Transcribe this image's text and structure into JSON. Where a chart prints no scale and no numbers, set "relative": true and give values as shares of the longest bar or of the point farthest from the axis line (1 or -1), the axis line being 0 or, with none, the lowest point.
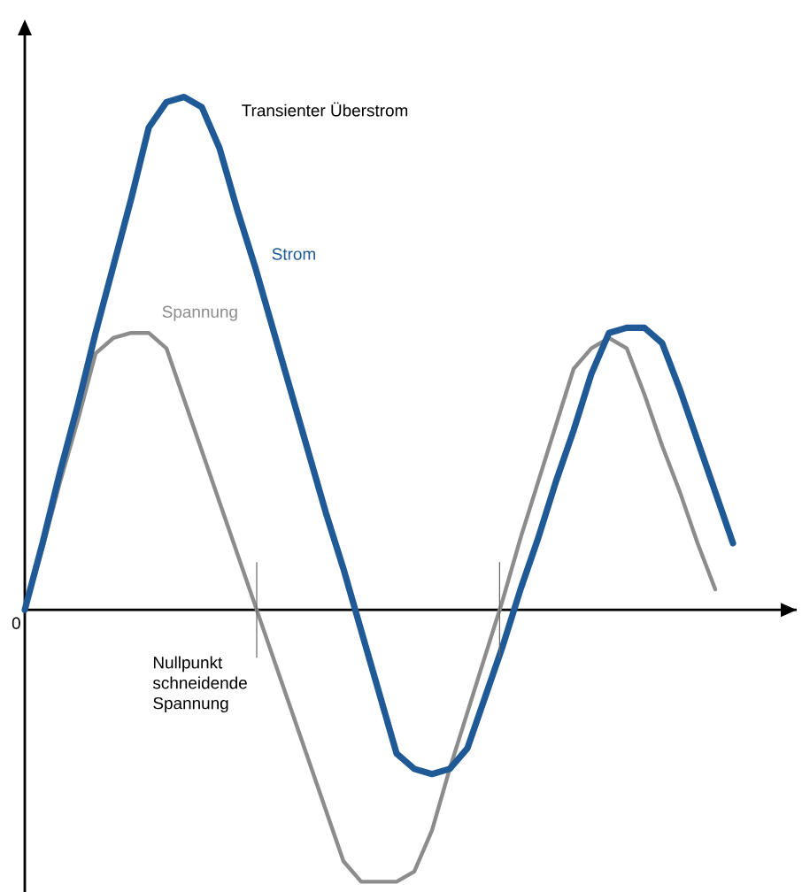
{
  "chart_data": {
    "type": "line",
    "relative": true,
    "marker": "none",
    "line_style": "solid",
    "categories": [
      null,
      null,
      null,
      null,
      null,
      null,
      null,
      null,
      null,
      null,
      null,
      null,
      null,
      null,
      null,
      null,
      null,
      null,
      null,
      null,
      null,
      null,
      null,
      null,
      null,
      null,
      null,
      null,
      null,
      null,
      null,
      null,
      null,
      null,
      null,
      null,
      null,
      null,
      null,
      null,
      null
    ],
    "annotations": [
      "0",
      "Transienter Überstrom",
      "Nullpunkt schneidende Spannung"
    ],
    "series": [
      {
        "name": "Spannung",
        "color": "#8c8c8c",
        "values": [
          0,
          0.12,
          0.25,
          0.37,
          0.5,
          0.53,
          0.54,
          0.54,
          0.51,
          0.41,
          0.31,
          0.21,
          0.11,
          0.01,
          -0.09,
          -0.19,
          -0.29,
          -0.39,
          -0.49,
          -0.53,
          -0.53,
          -0.53,
          -0.51,
          -0.43,
          -0.31,
          -0.2,
          -0.09,
          0.02,
          0.14,
          0.25,
          0.36,
          0.47,
          0.51,
          0.53,
          0.51,
          0.42,
          0.32,
          0.23,
          0.13,
          0.04,
          null
        ]
      },
      {
        "name": "Strom",
        "color": "#1f5a96",
        "values": [
          0,
          0.13,
          0.27,
          0.4,
          0.54,
          0.67,
          0.8,
          0.94,
          0.99,
          1,
          0.98,
          0.9,
          0.78,
          0.67,
          0.55,
          0.43,
          0.31,
          0.19,
          0.08,
          -0.04,
          -0.16,
          -0.28,
          -0.31,
          -0.32,
          -0.31,
          -0.27,
          -0.17,
          -0.07,
          0.04,
          0.14,
          0.25,
          0.35,
          0.46,
          0.54,
          0.55,
          0.55,
          0.52,
          0.43,
          0.33,
          0.23,
          0.13
        ]
      }
    ]
  }
}
